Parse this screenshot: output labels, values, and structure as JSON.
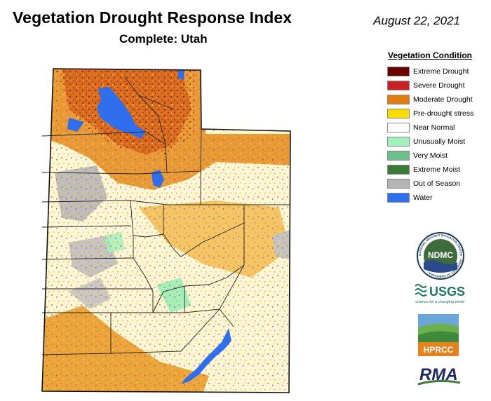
{
  "header": {
    "title": "Vegetation Drought Response Index",
    "subtitle": "Complete: Utah",
    "date": "August 22, 2021"
  },
  "legend": {
    "title": "Vegetation Condition",
    "items": [
      {
        "label": "Extreme Drought",
        "color": "#6b0000"
      },
      {
        "label": "Severe Drought",
        "color": "#c82025"
      },
      {
        "label": "Moderate Drought",
        "color": "#e07c10"
      },
      {
        "label": "Pre-drought stress",
        "color": "#f7dc00"
      },
      {
        "label": "Near Normal",
        "color": "#ffffff"
      },
      {
        "label": "Unusually Moist",
        "color": "#a0f0c0"
      },
      {
        "label": "Very Moist",
        "color": "#6cc08c"
      },
      {
        "label": "Extreme Moist",
        "color": "#3a7a34"
      },
      {
        "label": "Out of Season",
        "color": "#b4b4b4"
      },
      {
        "label": "Water",
        "color": "#2f6fee"
      }
    ]
  },
  "logos": {
    "ndmc": {
      "text": "NDMC",
      "ring_text": "NATIONAL DROUGHT MITIGATION CENTER · UNIVERSITY OF NEBRASKA"
    },
    "usgs": {
      "text": "USGS",
      "tagline": "science for a changing world"
    },
    "hprcc": {
      "text": "HPRCC"
    },
    "rma": {
      "text": "RMA"
    }
  }
}
